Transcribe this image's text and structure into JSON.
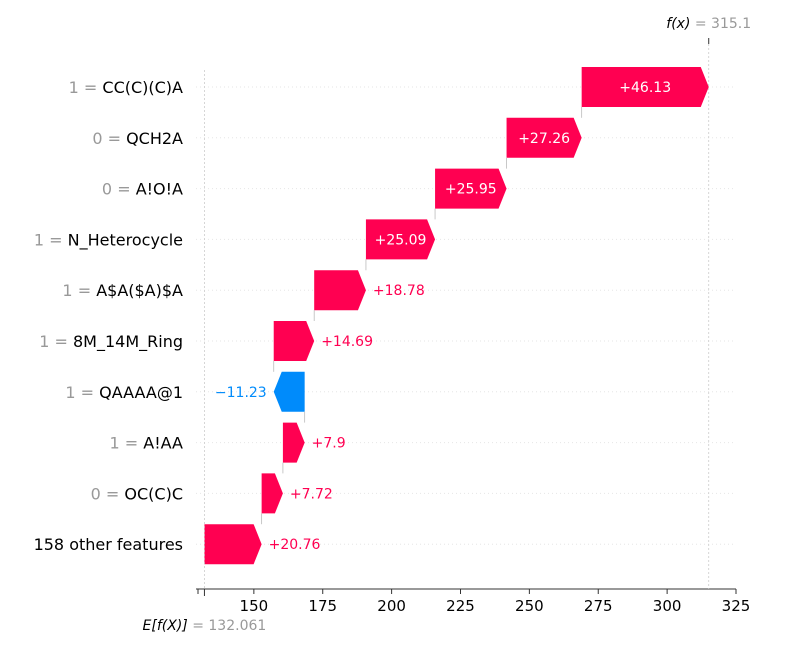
{
  "chart_data": {
    "type": "waterfall",
    "fx": {
      "label": "f(x)",
      "value": "315.1",
      "numeric": 315.1
    },
    "base": {
      "label": "E[f(X)]",
      "value": "132.061",
      "numeric": 132.061
    },
    "xlim": [
      129,
      325
    ],
    "xticks": [
      150,
      175,
      200,
      225,
      250,
      275,
      300,
      325
    ],
    "features": [
      {
        "value": "1",
        "name": "CC(C)(C)A",
        "contribution": 46.13,
        "label": "+46.13"
      },
      {
        "value": "0",
        "name": "QCH2A",
        "contribution": 27.26,
        "label": "+27.26"
      },
      {
        "value": "0",
        "name": "A!O!A",
        "contribution": 25.95,
        "label": "+25.95"
      },
      {
        "value": "1",
        "name": "N_Heterocycle",
        "contribution": 25.09,
        "label": "+25.09"
      },
      {
        "value": "1",
        "name": "A$A($A)$A",
        "contribution": 18.78,
        "label": "+18.78"
      },
      {
        "value": "1",
        "name": "8M_14M_Ring",
        "contribution": 14.69,
        "label": "+14.69"
      },
      {
        "value": "1",
        "name": "QAAAA@1",
        "contribution": -11.23,
        "label": "−11.23"
      },
      {
        "value": "1",
        "name": "A!AA",
        "contribution": 7.9,
        "label": "+7.9"
      },
      {
        "value": "0",
        "name": "OC(C)C",
        "contribution": 7.72,
        "label": "+7.72"
      },
      {
        "value": "",
        "name": "158 other features",
        "contribution": 20.76,
        "label": "+20.76"
      }
    ],
    "colors": {
      "positive": "#ff0051",
      "negative": "#008bfb",
      "muted": "#999999"
    }
  }
}
